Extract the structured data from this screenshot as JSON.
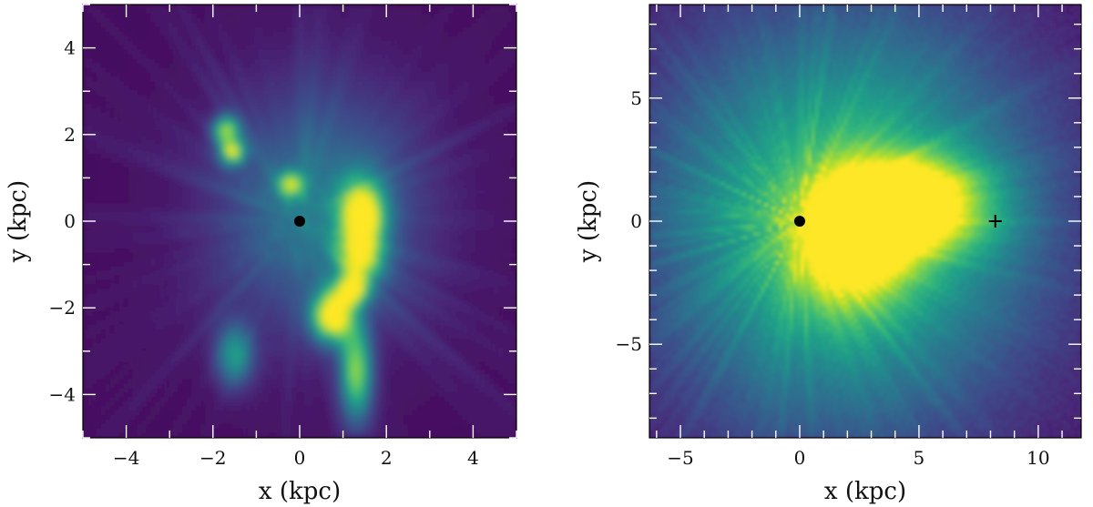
{
  "chart_data": [
    {
      "type": "heatmap",
      "title": "",
      "xlabel": "x (kpc)",
      "ylabel": "y (kpc)",
      "xlim": [
        -5,
        5
      ],
      "ylim": [
        -5,
        5
      ],
      "xticks": [
        -4,
        -2,
        0,
        2,
        4
      ],
      "yticks": [
        -4,
        -2,
        0,
        2,
        4
      ],
      "xtick_labels": [
        "−4",
        "−2",
        "0",
        "2",
        "4"
      ],
      "ytick_labels": [
        "−4",
        "−2",
        "0",
        "2",
        "4"
      ],
      "colormap": "viridis",
      "grid": false,
      "background_color": "#46085c",
      "markers": [
        {
          "x": 0,
          "y": 0,
          "symbol": "filled-circle",
          "color": "#000000"
        }
      ],
      "hotspots": [
        {
          "x": 1.45,
          "y": 0.1,
          "sx": 0.35,
          "sy": 0.55,
          "intensity": 1.0
        },
        {
          "x": 0.75,
          "y": -2.2,
          "sx": 0.32,
          "sy": 0.4,
          "intensity": 1.0
        },
        {
          "x": 1.2,
          "y": -1.6,
          "sx": 0.25,
          "sy": 0.25,
          "intensity": 0.8
        },
        {
          "x": 1.3,
          "y": -3.5,
          "sx": 0.25,
          "sy": 0.8,
          "intensity": 0.75
        },
        {
          "x": -1.7,
          "y": 2.1,
          "sx": 0.2,
          "sy": 0.22,
          "intensity": 0.75
        },
        {
          "x": -1.55,
          "y": 1.6,
          "sx": 0.2,
          "sy": 0.2,
          "intensity": 0.8
        },
        {
          "x": -0.2,
          "y": 0.85,
          "sx": 0.2,
          "sy": 0.2,
          "intensity": 0.65
        },
        {
          "x": 1.4,
          "y": -0.9,
          "sx": 0.35,
          "sy": 0.35,
          "intensity": 0.6
        },
        {
          "x": -1.5,
          "y": -3.1,
          "sx": 0.3,
          "sy": 0.5,
          "intensity": 0.5
        },
        {
          "x": 0.5,
          "y": 0.3,
          "sx": 1.6,
          "sy": 1.9,
          "intensity": 0.38
        }
      ]
    },
    {
      "type": "heatmap",
      "title": "",
      "xlabel": "x (kpc)",
      "ylabel": "y (kpc)",
      "xlim": [
        -6.3,
        11.8
      ],
      "ylim": [
        -8.8,
        8.8
      ],
      "xticks": [
        -5,
        0,
        5,
        10
      ],
      "yticks": [
        -5,
        0,
        5
      ],
      "xtick_labels": [
        "−5",
        "0",
        "5",
        "10"
      ],
      "ytick_labels": [
        "−5",
        "0",
        "5"
      ],
      "colormap": "viridis",
      "grid": false,
      "background_color": "#46085c",
      "markers": [
        {
          "x": 0,
          "y": 0,
          "symbol": "filled-circle",
          "color": "#000000"
        },
        {
          "x": 8.2,
          "y": 0,
          "symbol": "plus",
          "color": "#000000"
        }
      ],
      "hotspots": [
        {
          "x": 2.0,
          "y": 0.0,
          "sx": 5.5,
          "sy": 5.8,
          "intensity": 0.72
        },
        {
          "x": 3.2,
          "y": 0.6,
          "sx": 1.8,
          "sy": 1.3,
          "intensity": 0.55
        },
        {
          "x": 2.3,
          "y": -1.4,
          "sx": 1.6,
          "sy": 1.5,
          "intensity": 0.5
        },
        {
          "x": 5.5,
          "y": 1.3,
          "sx": 2.0,
          "sy": 1.0,
          "intensity": 0.35
        },
        {
          "x": 5.8,
          "y": -0.2,
          "sx": 2.3,
          "sy": 0.9,
          "intensity": 0.28
        }
      ]
    }
  ]
}
